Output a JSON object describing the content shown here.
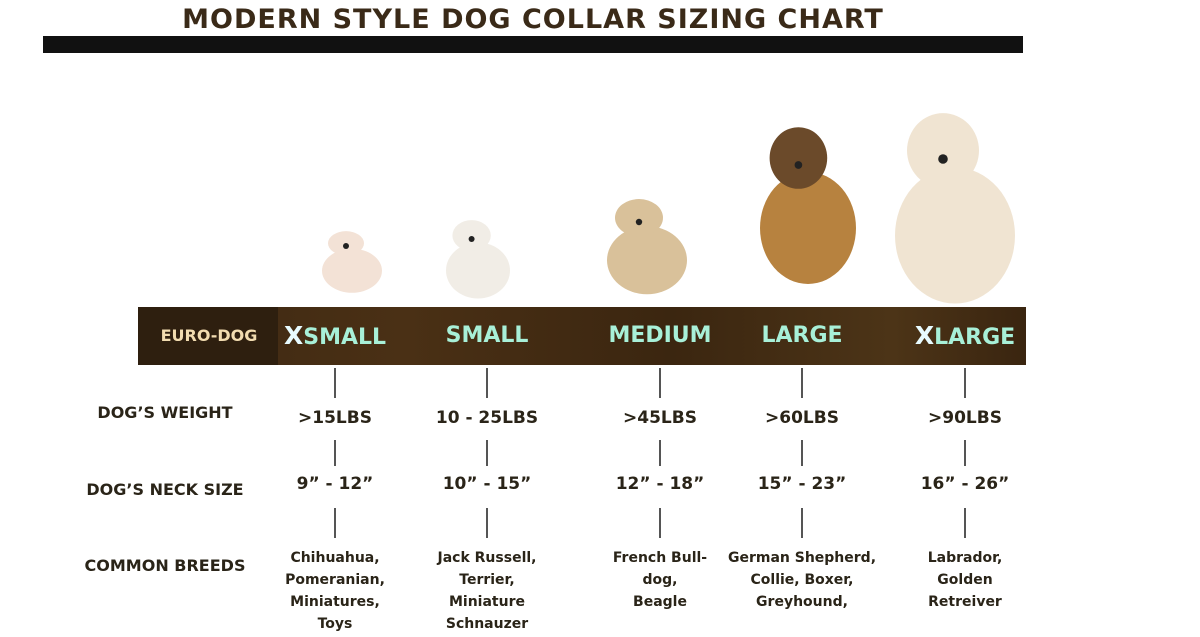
{
  "title": "MODERN STYLE DOG COLLAR SIZING CHART",
  "brand_label": "EURO-DOG",
  "row_labels": {
    "weight": "DOG’S WEIGHT",
    "neck": "DOG’S NECK SIZE",
    "breeds": "COMMON BREEDS"
  },
  "sizes": [
    {
      "x_prefix": "X",
      "label": "SMALL",
      "weight": ">15LBS",
      "neck": "9” - 12”",
      "breeds": [
        "Chihuahua,",
        "Pomeranian,",
        "Miniatures,",
        "Toys"
      ],
      "dog": "pomeranian",
      "dog_color": "#f3e2d6"
    },
    {
      "x_prefix": "",
      "label": "SMALL",
      "weight": "10 - 25LBS",
      "neck": "10” - 15”",
      "breeds": [
        "Jack Russell,",
        "Terrier,",
        "Miniature",
        "Schnauzer"
      ],
      "dog": "jack-russell",
      "dog_color": "#f1ede6"
    },
    {
      "x_prefix": "",
      "label": "MEDIUM",
      "weight": ">45LBS",
      "neck": "12” - 18”",
      "breeds": [
        "French Bull-",
        "dog,",
        "Beagle"
      ],
      "dog": "french-bulldog",
      "dog_color": "#d9c19a"
    },
    {
      "x_prefix": "",
      "label": "LARGE",
      "weight": ">60LBS",
      "neck": "15” - 23”",
      "breeds": [
        "German Shepherd,",
        "Collie, Boxer,",
        "Greyhound,"
      ],
      "dog": "german-shepherd",
      "dog_color": "#b7823f"
    },
    {
      "x_prefix": "X",
      "label": "LARGE",
      "weight": ">90LBS",
      "neck": "16” - 26”",
      "breeds": [
        "Labrador,",
        "Golden",
        "Retreiver"
      ],
      "dog": "labrador",
      "dog_color": "#f0e4d2"
    }
  ],
  "colors": {
    "band": "#3d2812",
    "band_text": "#a8f0d8",
    "brand_text": "#f2dcb0",
    "title": "#3a2a18"
  }
}
